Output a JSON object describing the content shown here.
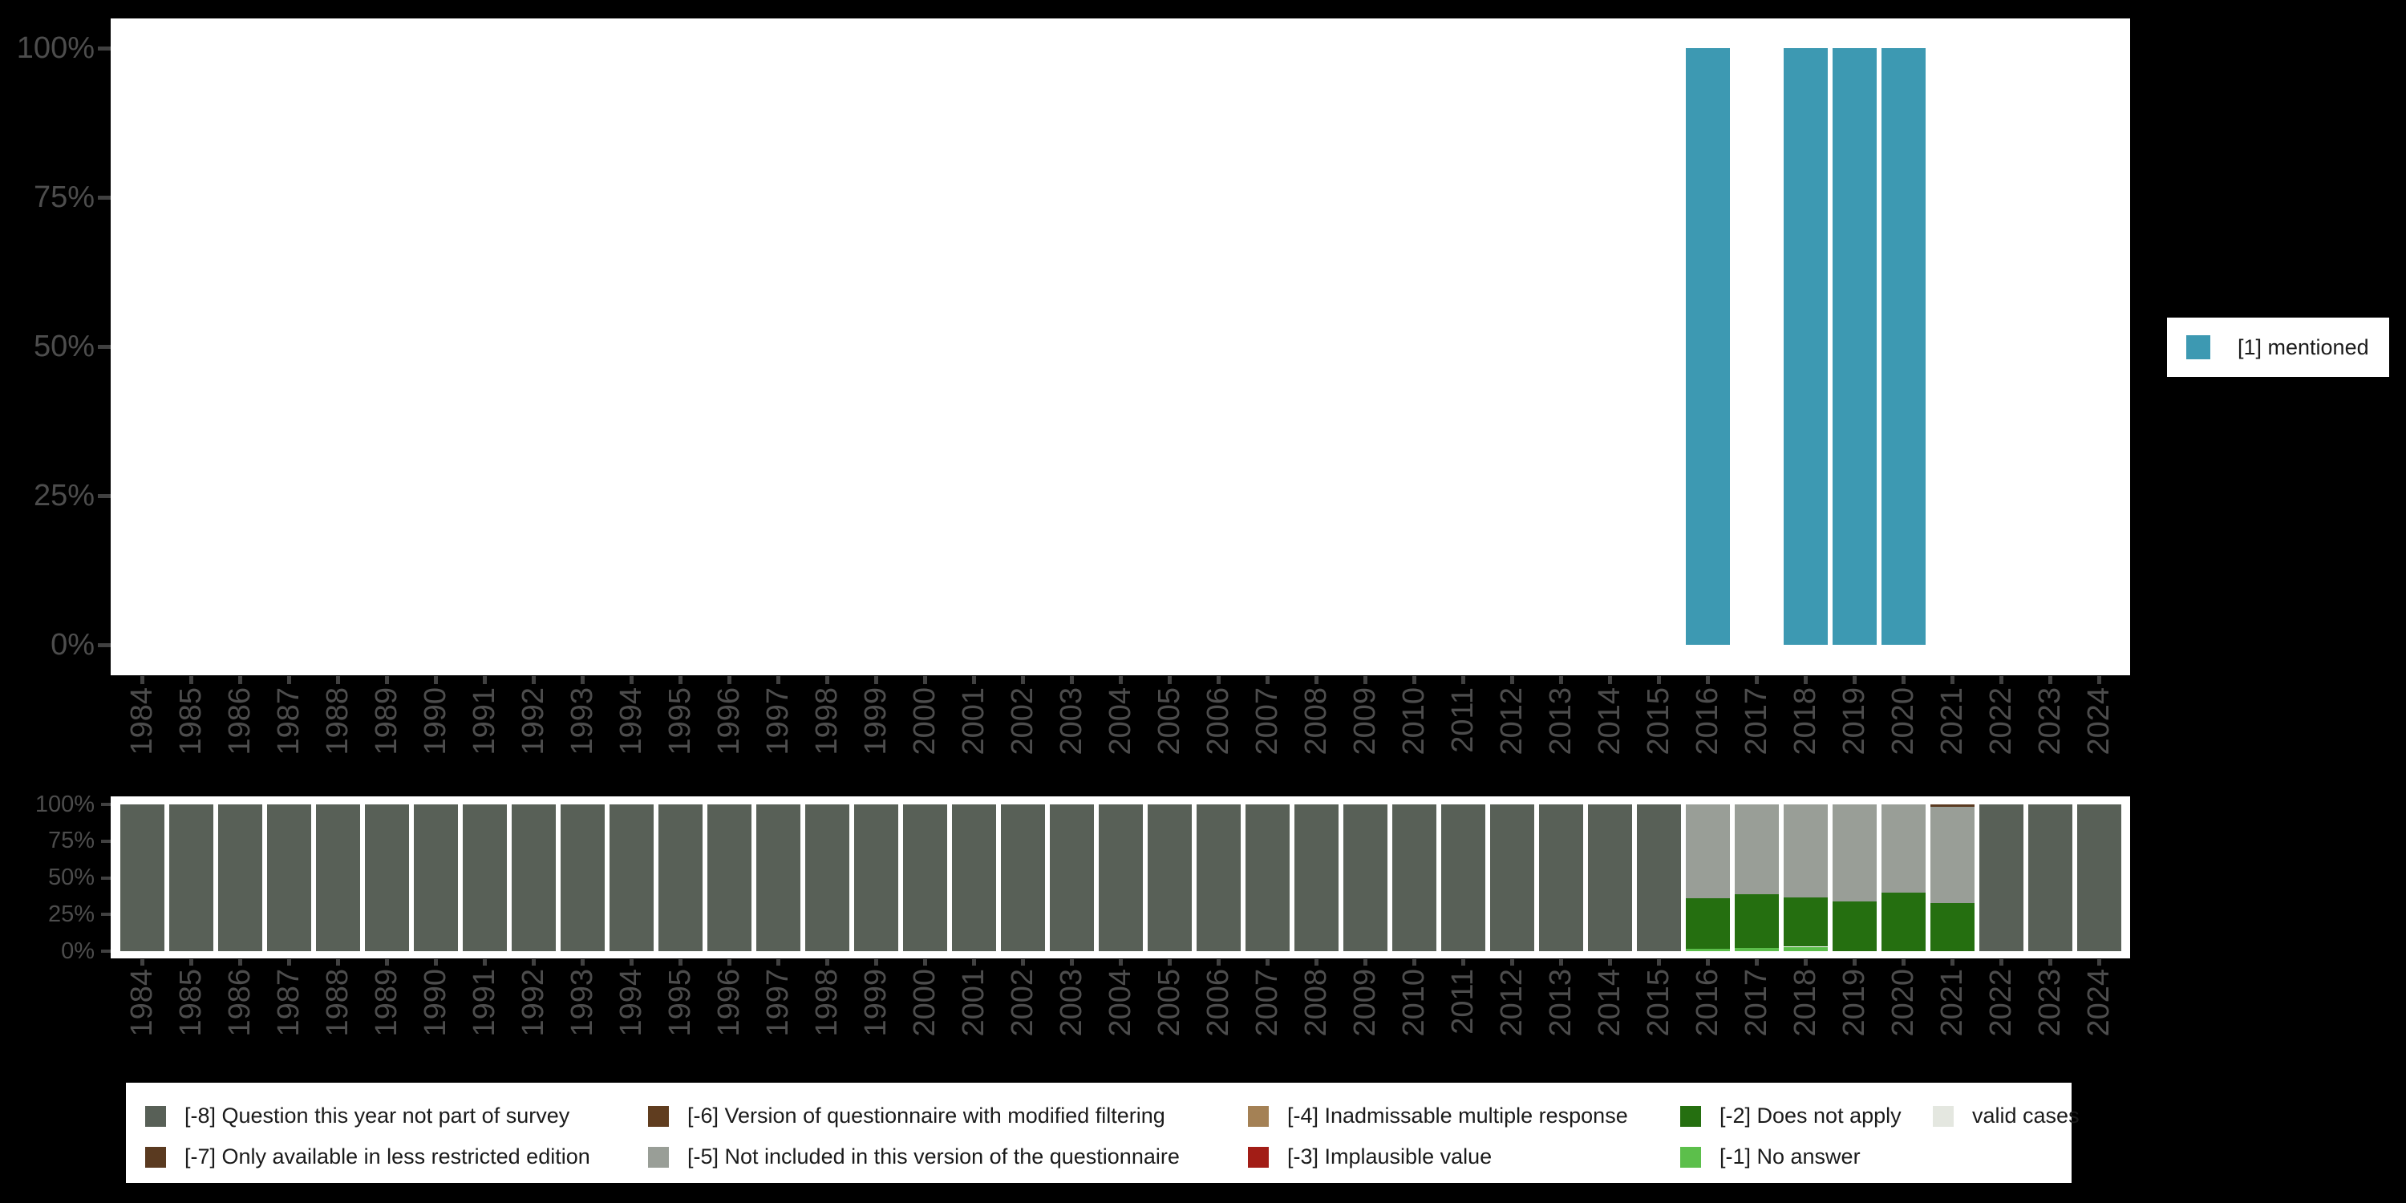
{
  "colors": {
    "background": "#000000",
    "plot_background": "#ffffff",
    "axis_text": "#4d4d4d",
    "tick_mark": "#414141",
    "legend_text": "#1b1b1b",
    "mentioned": "#3d99b2",
    "code_m8": "#586057",
    "code_m7": "#5a3a20",
    "code_m6": "#603d1f",
    "code_m5": "#999e97",
    "code_m4": "#a48155",
    "code_m3": "#a21d16",
    "code_m2": "#256f10",
    "code_m1": "#5cbf4b",
    "valid_cases": "#e4e7e0"
  },
  "years": [
    "1984",
    "1985",
    "1986",
    "1987",
    "1988",
    "1989",
    "1990",
    "1991",
    "1992",
    "1993",
    "1994",
    "1995",
    "1996",
    "1997",
    "1998",
    "1999",
    "2000",
    "2001",
    "2002",
    "2003",
    "2004",
    "2005",
    "2006",
    "2007",
    "2008",
    "2009",
    "2010",
    "2011",
    "2012",
    "2013",
    "2014",
    "2015",
    "2016",
    "2017",
    "2018",
    "2019",
    "2020",
    "2021",
    "2022",
    "2023",
    "2024"
  ],
  "top_chart": {
    "y_tick_labels": [
      "0%",
      "25%",
      "50%",
      "75%",
      "100%"
    ],
    "y_tick_values": [
      0,
      25,
      50,
      75,
      100
    ],
    "legend": {
      "label": "[1] mentioned",
      "color": "#3d99b2"
    }
  },
  "bottom_chart": {
    "y_tick_labels": [
      "0%",
      "25%",
      "50%",
      "75%",
      "100%"
    ],
    "y_tick_values": [
      0,
      25,
      50,
      75,
      100
    ]
  },
  "legend_items": [
    {
      "label": "[-8] Question this year not part of survey",
      "color": "#586057"
    },
    {
      "label": "[-7] Only available in less restricted edition",
      "color": "#5a3a20"
    },
    {
      "label": "[-6] Version of questionnaire with modified filtering",
      "color": "#603d1f"
    },
    {
      "label": "[-5] Not included in this version of the questionnaire",
      "color": "#999e97"
    },
    {
      "label": "[-4] Inadmissable multiple response",
      "color": "#a48155"
    },
    {
      "label": "[-3] Implausible value",
      "color": "#a21d16"
    },
    {
      "label": "[-2] Does not apply",
      "color": "#256f10"
    },
    {
      "label": "[-1] No answer",
      "color": "#5cbf4b"
    },
    {
      "label": "valid cases",
      "color": "#e4e7e0"
    }
  ],
  "chart_data": [
    {
      "id": "mentioned-percentages",
      "type": "bar",
      "title": "",
      "x": [
        "1984",
        "1985",
        "1986",
        "1987",
        "1988",
        "1989",
        "1990",
        "1991",
        "1992",
        "1993",
        "1994",
        "1995",
        "1996",
        "1997",
        "1998",
        "1999",
        "2000",
        "2001",
        "2002",
        "2003",
        "2004",
        "2005",
        "2006",
        "2007",
        "2008",
        "2009",
        "2010",
        "2011",
        "2012",
        "2013",
        "2014",
        "2015",
        "2016",
        "2017",
        "2018",
        "2019",
        "2020",
        "2021",
        "2022",
        "2023",
        "2024"
      ],
      "ylim": [
        0,
        100
      ],
      "yticks": [
        "0%",
        "25%",
        "50%",
        "75%",
        "100%"
      ],
      "grid": false,
      "legend_position": "right",
      "series": [
        {
          "name": "[1] mentioned",
          "color": "#3d99b2",
          "values": [
            null,
            null,
            null,
            null,
            null,
            null,
            null,
            null,
            null,
            null,
            null,
            null,
            null,
            null,
            null,
            null,
            null,
            null,
            null,
            null,
            null,
            null,
            null,
            null,
            null,
            null,
            null,
            null,
            null,
            null,
            null,
            null,
            100,
            null,
            100,
            100,
            100,
            null,
            null,
            null,
            null
          ]
        }
      ]
    },
    {
      "id": "missing-value-composition",
      "type": "stacked-bar",
      "title": "",
      "x": [
        "1984",
        "1985",
        "1986",
        "1987",
        "1988",
        "1989",
        "1990",
        "1991",
        "1992",
        "1993",
        "1994",
        "1995",
        "1996",
        "1997",
        "1998",
        "1999",
        "2000",
        "2001",
        "2002",
        "2003",
        "2004",
        "2005",
        "2006",
        "2007",
        "2008",
        "2009",
        "2010",
        "2011",
        "2012",
        "2013",
        "2014",
        "2015",
        "2016",
        "2017",
        "2018",
        "2019",
        "2020",
        "2021",
        "2022",
        "2023",
        "2024"
      ],
      "ylim": [
        0,
        100
      ],
      "yticks": [
        "0%",
        "25%",
        "50%",
        "75%",
        "100%"
      ],
      "grid": false,
      "legend_position": "bottom",
      "stack_order": "bottom to top as listed",
      "series": [
        {
          "name": "[-1] No answer",
          "color": "#5cbf4b",
          "values": [
            0,
            0,
            0,
            0,
            0,
            0,
            0,
            0,
            0,
            0,
            0,
            0,
            0,
            0,
            0,
            0,
            0,
            0,
            0,
            0,
            0,
            0,
            0,
            0,
            0,
            0,
            0,
            0,
            0,
            0,
            0,
            0,
            1.4,
            2,
            3,
            0,
            0,
            0,
            0,
            0,
            0
          ]
        },
        {
          "name": "[-2] Does not apply",
          "color": "#256f10",
          "values": [
            0,
            0,
            0,
            0,
            0,
            0,
            0,
            0,
            0,
            0,
            0,
            0,
            0,
            0,
            0,
            0,
            0,
            0,
            0,
            0,
            0,
            0,
            0,
            0,
            0,
            0,
            0,
            0,
            0,
            0,
            0,
            0,
            34.7,
            36.8,
            33.8,
            34,
            40,
            33,
            0,
            0,
            0
          ]
        },
        {
          "name": "[-5] Not included in this version of the questionnaire",
          "color": "#999e97",
          "values": [
            0,
            0,
            0,
            0,
            0,
            0,
            0,
            0,
            0,
            0,
            0,
            0,
            0,
            0,
            0,
            0,
            0,
            0,
            0,
            0,
            0,
            0,
            0,
            0,
            0,
            0,
            0,
            0,
            0,
            0,
            0,
            0,
            63.9,
            61.2,
            63.2,
            66,
            60,
            65.6,
            0,
            0,
            0
          ]
        },
        {
          "name": "[-7] Only available in less restricted edition",
          "color": "#5a3a20",
          "values": [
            0,
            0,
            0,
            0,
            0,
            0,
            0,
            0,
            0,
            0,
            0,
            0,
            0,
            0,
            0,
            0,
            0,
            0,
            0,
            0,
            0,
            0,
            0,
            0,
            0,
            0,
            0,
            0,
            0,
            0,
            0,
            0,
            0,
            0,
            0,
            0,
            0,
            1.4,
            0,
            0,
            0
          ]
        },
        {
          "name": "[-8] Question this year not part of survey",
          "color": "#586057",
          "values": [
            100,
            100,
            100,
            100,
            100,
            100,
            100,
            100,
            100,
            100,
            100,
            100,
            100,
            100,
            100,
            100,
            100,
            100,
            100,
            100,
            100,
            100,
            100,
            100,
            100,
            100,
            100,
            100,
            100,
            100,
            100,
            100,
            0,
            0,
            0,
            0,
            0,
            0,
            100,
            100,
            100
          ]
        }
      ]
    }
  ]
}
